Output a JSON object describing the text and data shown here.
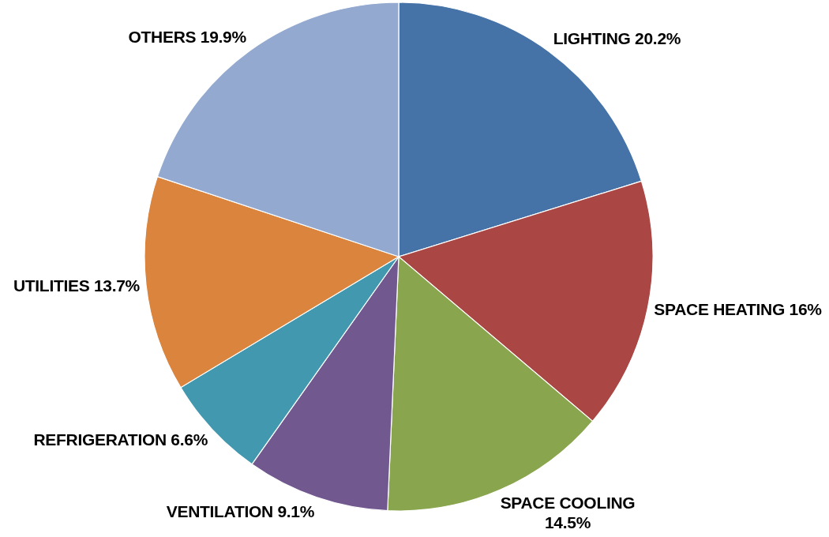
{
  "chart_data": {
    "type": "pie",
    "categories": [
      "LIGHTING",
      "SPACE HEATING",
      "SPACE COOLING",
      "VENTILATION",
      "REFRIGERATION",
      "UTILITIES",
      "OTHERS"
    ],
    "values": [
      20.2,
      16,
      14.5,
      9.1,
      6.6,
      13.7,
      19.9
    ],
    "value_labels": [
      "20.2%",
      "16%",
      "14.5%",
      "9.1%",
      "6.6%",
      "13.7%",
      "19.9%"
    ],
    "colors": [
      "#4572a7",
      "#aa4643",
      "#89a54e",
      "#71588f",
      "#4198af",
      "#db843d",
      "#93a9d0"
    ]
  }
}
